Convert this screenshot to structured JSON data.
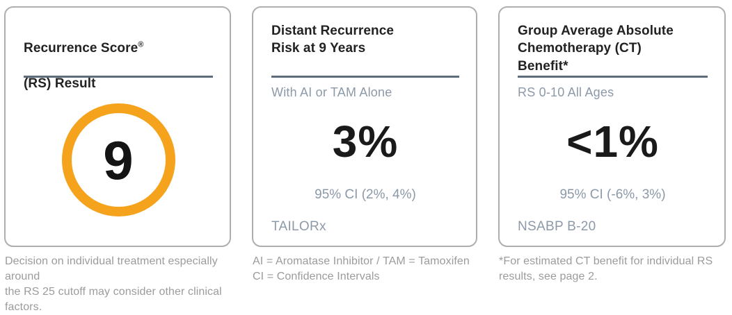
{
  "colors": {
    "accent_orange": "#F5A21C",
    "divider_slate": "#5D6C7B",
    "secondary_blue_gray": "#8C99A8",
    "footnote_gray": "#9B9B9B",
    "title_black": "#222222",
    "card_border_gray": "#AEAEAE"
  },
  "cards": [
    {
      "title_line1": "Recurrence Score",
      "title_reg": "®",
      "title_line2": "(RS) Result",
      "score": "9",
      "footnote": "Decision on individual treatment especially around\nthe RS 25 cutoff may consider other clinical factors."
    },
    {
      "title": "Distant Recurrence\nRisk at 9 Years",
      "subtitle": "With AI or TAM Alone",
      "value": "3%",
      "ci": "95% CI (2%, 4%)",
      "trial": "TAILORx",
      "footnote": "AI = Aromatase Inhibitor / TAM = Tamoxifen\nCI = Confidence Intervals"
    },
    {
      "title": "Group Average Absolute\nChemotherapy (CT)\nBenefit*",
      "subtitle": "RS 0-10 All Ages",
      "value": "<1%",
      "ci": "95% CI (-6%, 3%)",
      "trial": "NSABP B-20",
      "footnote": "*For estimated CT benefit for individual RS\nresults, see page 2."
    }
  ]
}
